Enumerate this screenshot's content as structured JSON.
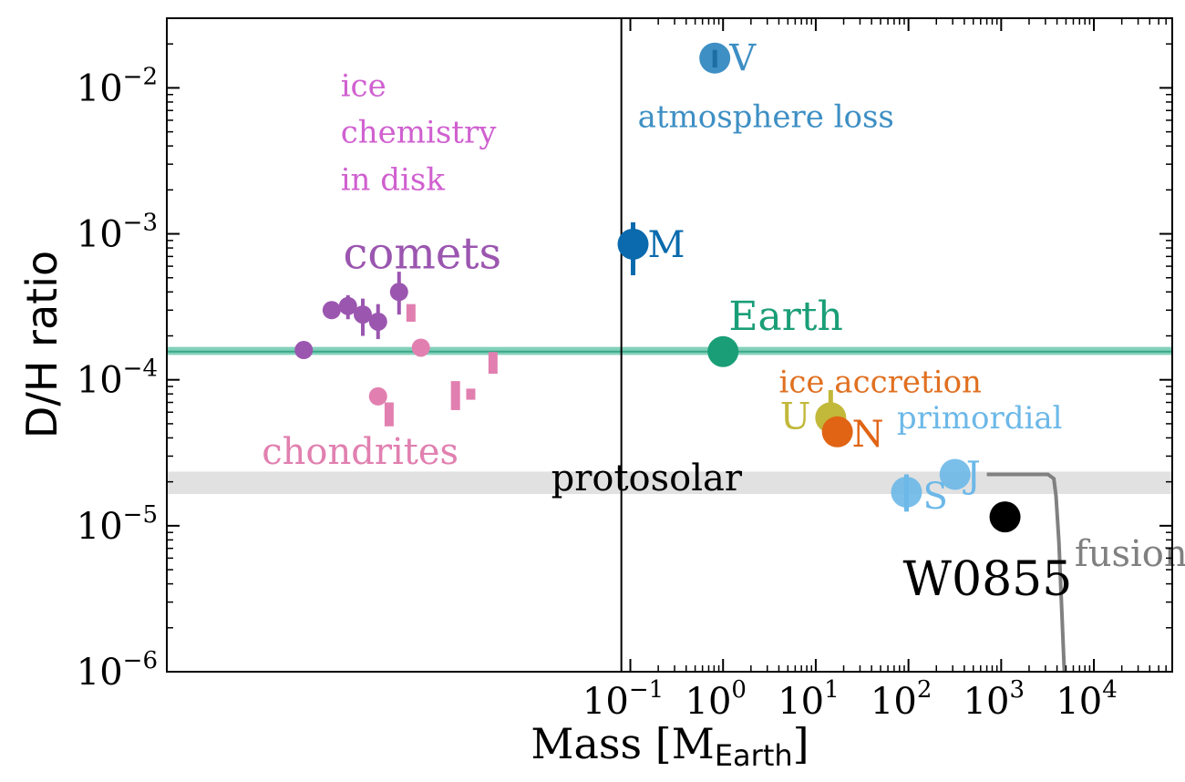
{
  "chart_data": {
    "type": "scatter",
    "xlabel_main": "Mass [M",
    "xlabel_sub": "Earth",
    "xlabel_close": "]",
    "ylabel": "D/H ratio",
    "xscale": "log",
    "yscale": "log",
    "xlim": [
      1e-06,
      70000
    ],
    "ylim": [
      1e-06,
      0.03
    ],
    "x_ticks": [
      {
        "value": 0.1,
        "base": "10",
        "exp": "−1"
      },
      {
        "value": 1,
        "base": "10",
        "exp": "0"
      },
      {
        "value": 10,
        "base": "10",
        "exp": "1"
      },
      {
        "value": 100,
        "base": "10",
        "exp": "2"
      },
      {
        "value": 1000,
        "base": "10",
        "exp": "3"
      },
      {
        "value": 10000,
        "base": "10",
        "exp": "4"
      }
    ],
    "y_ticks": [
      {
        "value": 1e-06,
        "base": "10",
        "exp": "−6"
      },
      {
        "value": 1e-05,
        "base": "10",
        "exp": "−5"
      },
      {
        "value": 0.0001,
        "base": "10",
        "exp": "−4"
      },
      {
        "value": 0.001,
        "base": "10",
        "exp": "−3"
      },
      {
        "value": 0.01,
        "base": "10",
        "exp": "−2"
      }
    ],
    "separator_x": 0.08,
    "bands": [
      {
        "name": "earth",
        "y_low": 0.000148,
        "y_high": 0.000168,
        "color": "#6cc9ae",
        "line_color": "#3aa886",
        "value_line": 0.000156
      },
      {
        "name": "protosolar",
        "y_low": 1.65e-05,
        "y_high": 2.35e-05,
        "color": "#dcdcdc"
      }
    ],
    "planets": [
      {
        "key": "venus",
        "label": "V",
        "x": 0.815,
        "y": 0.016,
        "err_low": 0.0138,
        "err_high": 0.0182,
        "color": "#3d8fc4",
        "label_color": "#3d8fc4"
      },
      {
        "key": "mars",
        "label": "M",
        "x": 0.107,
        "y": 0.00085,
        "err_low": 0.00052,
        "err_high": 0.0012,
        "color": "#0a6aad",
        "label_color": "#0a6aad"
      },
      {
        "key": "earth",
        "label": "",
        "x": 1.0,
        "y": 0.000156,
        "color": "#1a9e77"
      },
      {
        "key": "uranus",
        "label": "U",
        "x": 14.5,
        "y": 5.5e-05,
        "err_low": 4e-05,
        "err_high": 8.5e-05,
        "color": "#c2b83a",
        "label_color": "#c2b83a"
      },
      {
        "key": "neptune",
        "label": "N",
        "x": 17.1,
        "y": 4.4e-05,
        "color": "#e06414",
        "label_color": "#e06414"
      },
      {
        "key": "saturn",
        "label": "S",
        "x": 95.2,
        "y": 1.7e-05,
        "err_low": 1.25e-05,
        "err_high": 2.25e-05,
        "color": "#6cb8e8",
        "label_color": "#6cb8e8"
      },
      {
        "key": "jupiter",
        "label": "J",
        "x": 317.8,
        "y": 2.25e-05,
        "color": "#6cb8e8",
        "label_color": "#6cb8e8"
      },
      {
        "key": "w0855",
        "label": "W0855",
        "x": 1100,
        "y": 1.15e-05,
        "color": "#000000",
        "label_color": "#000000"
      }
    ],
    "comets": {
      "color": "#9b56b0",
      "points": [
        {
          "x": 3e-05,
          "y": 0.00016
        },
        {
          "x": 6e-05,
          "y": 0.0003
        },
        {
          "x": 9e-05,
          "y": 0.00032,
          "err_low": 0.00026,
          "err_high": 0.00038
        },
        {
          "x": 0.00013,
          "y": 0.00028,
          "err_low": 0.0002,
          "err_high": 0.00036
        },
        {
          "x": 0.00019,
          "y": 0.00025,
          "err_low": 0.00019,
          "err_high": 0.00033
        },
        {
          "x": 0.00032,
          "y": 0.0004,
          "err_low": 0.00028,
          "err_high": 0.00055
        }
      ]
    },
    "chondrites": {
      "color": "#e180b0",
      "points": [
        {
          "x": 0.00019,
          "y": 7.7e-05
        },
        {
          "x": 0.00055,
          "y": 0.000166
        }
      ],
      "ranges": [
        {
          "x": 0.00025,
          "y_low": 4.8e-05,
          "y_high": 7e-05
        },
        {
          "x": 0.00043,
          "y_low": 0.00025,
          "y_high": 0.00033
        },
        {
          "x": 0.0013,
          "y_low": 6.2e-05,
          "y_high": 9.8e-05
        },
        {
          "x": 0.0019,
          "y_low": 7.3e-05,
          "y_high": 8.7e-05
        },
        {
          "x": 0.0033,
          "y_low": 0.00011,
          "y_high": 0.000155
        }
      ]
    },
    "fusion_curve": {
      "color": "#808080",
      "points": [
        [
          700,
          2.25e-05
        ],
        [
          3200,
          2.25e-05
        ],
        [
          3700,
          2.1e-05
        ],
        [
          3900,
          1.6e-05
        ],
        [
          4200,
          7.7e-06
        ],
        [
          4800,
          1e-06
        ]
      ]
    },
    "annotations": [
      {
        "key": "ice-chemistry-1",
        "text": "ice",
        "x": 7.5e-05,
        "y": 0.0088,
        "color": "#d060d0",
        "size": 34
      },
      {
        "key": "ice-chemistry-2",
        "text": "chemistry",
        "x": 7.5e-05,
        "y": 0.0042,
        "color": "#d060d0",
        "size": 34
      },
      {
        "key": "ice-chemistry-3",
        "text": "in disk",
        "x": 7.5e-05,
        "y": 0.002,
        "color": "#d060d0",
        "size": 34
      },
      {
        "key": "comets",
        "text": "comets",
        "x": 8e-05,
        "y": 0.00058,
        "color": "#9b56b0",
        "size": 48
      },
      {
        "key": "chondrites",
        "text": "chondrites",
        "x": 1.06e-05,
        "y": 2.65e-05,
        "color": "#e180b0",
        "size": 40
      },
      {
        "key": "atmosphere-loss",
        "text": "atmosphere loss",
        "x": 0.12,
        "y": 0.0054,
        "color": "#3d8fc4",
        "size": 34
      },
      {
        "key": "earth",
        "text": "Earth",
        "x": 1.15,
        "y": 0.00022,
        "color": "#1a9e77",
        "size": 44
      },
      {
        "key": "ice-accretion",
        "text": "ice accretion",
        "x": 4.0,
        "y": 8.2e-05,
        "color": "#e07020",
        "size": 34
      },
      {
        "key": "primordial",
        "text": "primordial",
        "x": 75,
        "y": 4.65e-05,
        "color": "#6cb8e8",
        "size": 34
      },
      {
        "key": "protosolar",
        "text": "protosolar",
        "x": 0.014,
        "y": 1.75e-05,
        "color": "#000000",
        "size": 40
      },
      {
        "key": "fusion",
        "text": "fusion",
        "x": 6200,
        "y": 5.3e-06,
        "color": "#808080",
        "size": 40
      }
    ]
  }
}
